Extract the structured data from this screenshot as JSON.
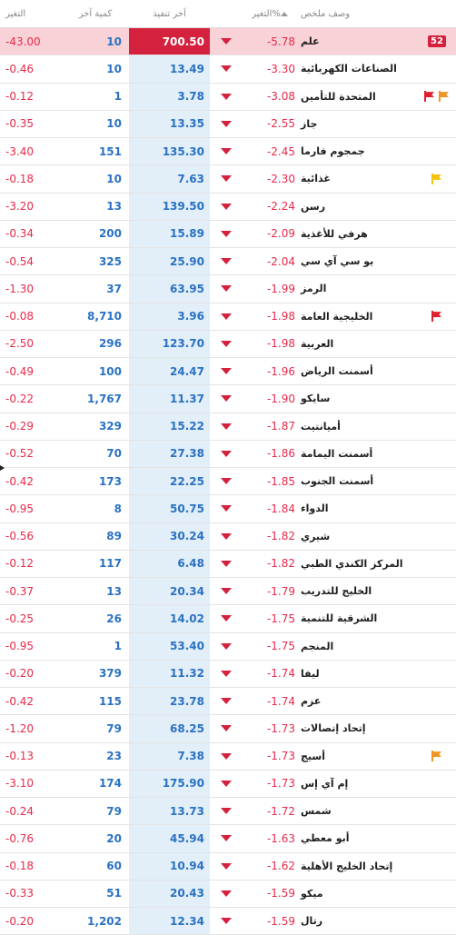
{
  "header": {
    "change": "التغير",
    "last_qty": "كمية آخر",
    "last_trade": "آخر تنفيذ",
    "pct_change": "التغير%",
    "description": "وصف ملخص"
  },
  "colors": {
    "negative": "#e8294a",
    "value_blue": "#2a72c4",
    "highlight_red": "#d3213e",
    "flag_red": "#e0202e",
    "flag_orange": "#f29424",
    "flag_yellow": "#f4c20d"
  },
  "rows": [
    {
      "name": "علم",
      "pct": "-5.78",
      "last": "700.50",
      "qty": "10",
      "change": "-43.00",
      "flag": "badge",
      "badge_text": "52"
    },
    {
      "name": "الصناعات الكهربائية",
      "pct": "-3.30",
      "last": "13.49",
      "qty": "10",
      "change": "-0.46",
      "flag": ""
    },
    {
      "name": "المتحدة للتأمين",
      "pct": "-3.08",
      "last": "3.78",
      "qty": "1",
      "change": "-0.12",
      "flag": "red-orange"
    },
    {
      "name": "جاز",
      "pct": "-2.55",
      "last": "13.35",
      "qty": "10",
      "change": "-0.35",
      "flag": ""
    },
    {
      "name": "جمجوم فارما",
      "pct": "-2.45",
      "last": "135.30",
      "qty": "151",
      "change": "-3.40",
      "flag": ""
    },
    {
      "name": "غذائية",
      "pct": "-2.30",
      "last": "7.63",
      "qty": "10",
      "change": "-0.18",
      "flag": "yellow"
    },
    {
      "name": "رسن",
      "pct": "-2.24",
      "last": "139.50",
      "qty": "13",
      "change": "-3.20",
      "flag": ""
    },
    {
      "name": "هرفي للأغذية",
      "pct": "-2.09",
      "last": "15.89",
      "qty": "200",
      "change": "-0.34",
      "flag": ""
    },
    {
      "name": "يو سي آي سي",
      "pct": "-2.04",
      "last": "25.90",
      "qty": "325",
      "change": "-0.54",
      "flag": ""
    },
    {
      "name": "الرمز",
      "pct": "-1.99",
      "last": "63.95",
      "qty": "37",
      "change": "-1.30",
      "flag": ""
    },
    {
      "name": "الخليجية العامة",
      "pct": "-1.98",
      "last": "3.96",
      "qty": "8,710",
      "change": "-0.08",
      "flag": "red"
    },
    {
      "name": "العربية",
      "pct": "-1.98",
      "last": "123.70",
      "qty": "296",
      "change": "-2.50",
      "flag": ""
    },
    {
      "name": "أسمنت الرياض",
      "pct": "-1.96",
      "last": "24.47",
      "qty": "100",
      "change": "-0.49",
      "flag": ""
    },
    {
      "name": "سايكو",
      "pct": "-1.90",
      "last": "11.37",
      "qty": "1,767",
      "change": "-0.22",
      "flag": ""
    },
    {
      "name": "أميانتيت",
      "pct": "-1.87",
      "last": "15.22",
      "qty": "329",
      "change": "-0.29",
      "flag": ""
    },
    {
      "name": "أسمنت اليمامة",
      "pct": "-1.86",
      "last": "27.38",
      "qty": "70",
      "change": "-0.52",
      "flag": ""
    },
    {
      "name": "أسمنت الجنوب",
      "pct": "-1.85",
      "last": "22.25",
      "qty": "173",
      "change": "-0.42",
      "flag": ""
    },
    {
      "name": "الدواء",
      "pct": "-1.84",
      "last": "50.75",
      "qty": "8",
      "change": "-0.95",
      "flag": ""
    },
    {
      "name": "شيري",
      "pct": "-1.82",
      "last": "30.24",
      "qty": "89",
      "change": "-0.56",
      "flag": ""
    },
    {
      "name": "المركز الكندي الطبي",
      "pct": "-1.82",
      "last": "6.48",
      "qty": "117",
      "change": "-0.12",
      "flag": ""
    },
    {
      "name": "الخليج للتدريب",
      "pct": "-1.79",
      "last": "20.34",
      "qty": "13",
      "change": "-0.37",
      "flag": ""
    },
    {
      "name": "الشرقية للتنمية",
      "pct": "-1.75",
      "last": "14.02",
      "qty": "26",
      "change": "-0.25",
      "flag": ""
    },
    {
      "name": "المنجم",
      "pct": "-1.75",
      "last": "53.40",
      "qty": "1",
      "change": "-0.95",
      "flag": ""
    },
    {
      "name": "ليفا",
      "pct": "-1.74",
      "last": "11.32",
      "qty": "379",
      "change": "-0.20",
      "flag": ""
    },
    {
      "name": "عزم",
      "pct": "-1.74",
      "last": "23.78",
      "qty": "115",
      "change": "-0.42",
      "flag": ""
    },
    {
      "name": "إتحاد إتصالات",
      "pct": "-1.73",
      "last": "68.25",
      "qty": "79",
      "change": "-1.20",
      "flag": ""
    },
    {
      "name": "أسيج",
      "pct": "-1.73",
      "last": "7.38",
      "qty": "23",
      "change": "-0.13",
      "flag": "orange"
    },
    {
      "name": "إم آي إس",
      "pct": "-1.73",
      "last": "175.90",
      "qty": "174",
      "change": "-3.10",
      "flag": ""
    },
    {
      "name": "شمس",
      "pct": "-1.72",
      "last": "13.73",
      "qty": "79",
      "change": "-0.24",
      "flag": ""
    },
    {
      "name": "أبو معطي",
      "pct": "-1.63",
      "last": "45.94",
      "qty": "20",
      "change": "-0.76",
      "flag": ""
    },
    {
      "name": "إتحاد الخليج الأهلية",
      "pct": "-1.62",
      "last": "10.94",
      "qty": "60",
      "change": "-0.18",
      "flag": ""
    },
    {
      "name": "ميكو",
      "pct": "-1.59",
      "last": "20.43",
      "qty": "51",
      "change": "-0.33",
      "flag": ""
    },
    {
      "name": "رتال",
      "pct": "-1.59",
      "last": "12.34",
      "qty": "1,202",
      "change": "-0.20",
      "flag": ""
    }
  ]
}
